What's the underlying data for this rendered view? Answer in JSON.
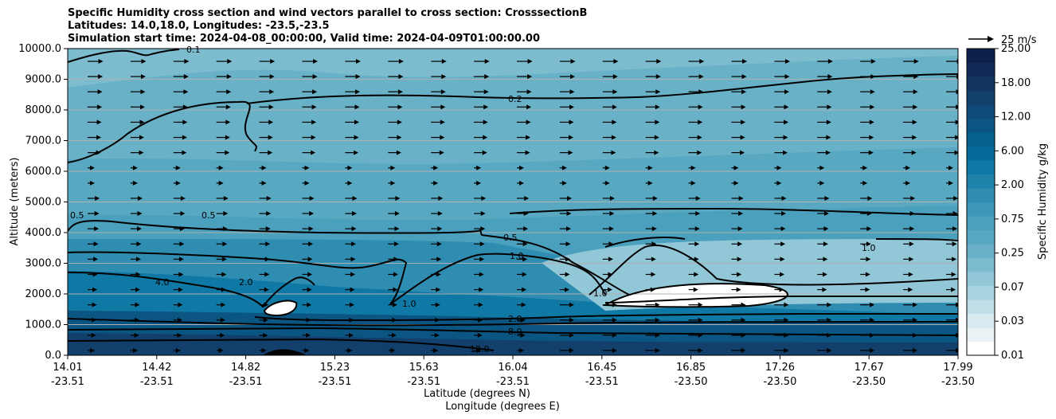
{
  "title_lines": [
    "Specific Humidity cross section and wind vectors parallel to cross section: CrosssectionB",
    "Latitudes: 14.0,18.0, Longitudes: -23.5,-23.5",
    "Simulation start time: 2024-04-08_00:00:00, Valid time: 2024-04-09T01:00:00.00"
  ],
  "chart_data": {
    "type": "heatmap",
    "title": "Specific Humidity cross section and wind vectors parallel to cross section: CrosssectionB",
    "ylabel": "Altitude (meters)",
    "xlabel_1": "Latitude (degrees N)",
    "xlabel_2": "Longitude (degrees E)",
    "ylim": [
      0,
      10000
    ],
    "y_ticks": [
      "0.0",
      "1000.0",
      "2000.0",
      "3000.0",
      "4000.0",
      "5000.0",
      "6000.0",
      "7000.0",
      "8000.0",
      "9000.0",
      "10000.0"
    ],
    "x_ticks_lat": [
      "14.01",
      "14.42",
      "14.82",
      "15.23",
      "15.63",
      "16.04",
      "16.45",
      "16.85",
      "17.26",
      "17.67",
      "17.99"
    ],
    "x_ticks_lon": [
      "-23.51",
      "-23.51",
      "-23.51",
      "-23.51",
      "-23.51",
      "-23.51",
      "-23.51",
      "-23.50",
      "-23.50",
      "-23.50",
      "-23.50"
    ],
    "colorbar_label": "Specific Humidity g/kg",
    "colorbar_ticks": [
      "0.01",
      "0.03",
      "0.07",
      "0.25",
      "0.75",
      "2.00",
      "6.00",
      "12.00",
      "18.00",
      "25.00"
    ],
    "colorbar_colors": [
      "#ffffff",
      "#e9f3f6",
      "#d6eaf0",
      "#c0dfe8",
      "#aad3e0",
      "#92c7d8",
      "#7dbccf",
      "#68b1c7",
      "#58a8c2",
      "#4aa0bd",
      "#3d97b8",
      "#2f8db2",
      "#1f82ab",
      "#0f78a4",
      "#066b9a",
      "#06608e",
      "#0b5583",
      "#0f4a78",
      "#123f6c",
      "#143460",
      "#112a55",
      "#0d2049"
    ],
    "wind_reference": "25 m/s",
    "contour_labels": [
      "0.1",
      "0.2",
      "0.5",
      "0.5",
      "0.5",
      "1.0",
      "1.0",
      "1.0",
      "1.0",
      "2.0",
      "2.0",
      "4.0",
      "8.0",
      "12.0"
    ]
  }
}
